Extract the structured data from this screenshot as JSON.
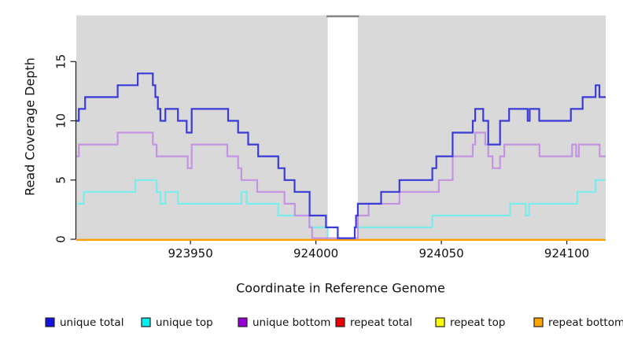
{
  "chart_data": {
    "type": "line",
    "step": true,
    "title": "",
    "xlabel": "Coordinate in Reference Genome",
    "ylabel": "Read Coverage Depth",
    "xlim": [
      923904.5,
      924115.5
    ],
    "ylim": [
      0,
      18.8
    ],
    "x_ticks": [
      923950,
      924000,
      924050,
      924100
    ],
    "y_ticks": [
      0,
      5,
      10,
      15
    ],
    "grid": "off",
    "legend_position": "bottom",
    "plot_bg": "#d9d9d9",
    "gap_band": {
      "x_start": 924004.7,
      "x_end": 924016.7,
      "fill": "#ffffff",
      "cap_color": "#808080"
    },
    "series": [
      {
        "name": "unique total",
        "line_color": "#3b3bd8",
        "legend_color": "#1111e8",
        "points": [
          [
            923904.5,
            10
          ],
          [
            923905.5,
            11
          ],
          [
            923908,
            12
          ],
          [
            923921,
            13
          ],
          [
            923929,
            14
          ],
          [
            923935,
            13
          ],
          [
            923936,
            12
          ],
          [
            923937,
            11
          ],
          [
            923938,
            10
          ],
          [
            923940,
            11
          ],
          [
            923945,
            10
          ],
          [
            923948.5,
            9
          ],
          [
            923950.5,
            11
          ],
          [
            923965,
            10
          ],
          [
            923969,
            9
          ],
          [
            923973,
            8
          ],
          [
            923977,
            7
          ],
          [
            923985,
            6
          ],
          [
            923987.5,
            5
          ],
          [
            923991.5,
            4
          ],
          [
            923997.5,
            2
          ],
          [
            924004,
            1
          ],
          [
            924008.7,
            0
          ],
          [
            924015.5,
            1
          ],
          [
            924016,
            2
          ],
          [
            924016.7,
            3
          ],
          [
            924026,
            4
          ],
          [
            924033.3,
            5
          ],
          [
            924046.4,
            6
          ],
          [
            924048,
            7
          ],
          [
            924054.5,
            9
          ],
          [
            924062.5,
            10
          ],
          [
            924063.5,
            11
          ],
          [
            924066.7,
            10
          ],
          [
            924068.7,
            8
          ],
          [
            924073.4,
            10
          ],
          [
            924077,
            11
          ],
          [
            924084.4,
            10
          ],
          [
            924085.2,
            11
          ],
          [
            924089,
            10
          ],
          [
            924101.6,
            11
          ],
          [
            924106.3,
            12
          ],
          [
            924111.5,
            13
          ],
          [
            924113,
            12
          ]
        ]
      },
      {
        "name": "unique top",
        "line_color": "#7bebeb",
        "legend_color": "#00f0f0",
        "points": [
          [
            923904.5,
            3
          ],
          [
            923907.5,
            4
          ],
          [
            923928,
            5
          ],
          [
            923936.5,
            4
          ],
          [
            923938,
            3
          ],
          [
            923940,
            4
          ],
          [
            923945,
            3
          ],
          [
            923970.3,
            4
          ],
          [
            923972.4,
            3
          ],
          [
            923985,
            2
          ],
          [
            923997.5,
            1
          ],
          [
            924004.7,
            0
          ],
          [
            924016.7,
            1
          ],
          [
            924046.4,
            2
          ],
          [
            924077.4,
            3
          ],
          [
            924083.6,
            2
          ],
          [
            924085,
            3
          ],
          [
            924104.2,
            4
          ],
          [
            924111.5,
            5
          ]
        ]
      },
      {
        "name": "unique bottom",
        "line_color": "#c493e1",
        "legend_color": "#9400d3",
        "points": [
          [
            923904.5,
            7
          ],
          [
            923905.5,
            8
          ],
          [
            923921,
            9
          ],
          [
            923935,
            8
          ],
          [
            923936.5,
            7
          ],
          [
            923948.9,
            6
          ],
          [
            923950.5,
            8
          ],
          [
            923964.7,
            7
          ],
          [
            923969,
            6
          ],
          [
            923970.3,
            5
          ],
          [
            923976.6,
            4
          ],
          [
            923987.5,
            3
          ],
          [
            923991.6,
            2
          ],
          [
            923997.4,
            1
          ],
          [
            923998.5,
            0
          ],
          [
            924016.7,
            2
          ],
          [
            924021,
            3
          ],
          [
            924033.3,
            4
          ],
          [
            924049,
            5
          ],
          [
            924054.5,
            7
          ],
          [
            924062.5,
            8
          ],
          [
            924063.5,
            9
          ],
          [
            924067.5,
            8
          ],
          [
            924068.7,
            7
          ],
          [
            924070.4,
            6
          ],
          [
            924073.4,
            7
          ],
          [
            924075.1,
            8
          ],
          [
            924089.1,
            7
          ],
          [
            924102.1,
            8
          ],
          [
            924103.7,
            7
          ],
          [
            924104.8,
            8
          ],
          [
            924113.1,
            7
          ]
        ]
      },
      {
        "name": "repeat total",
        "line_color": "#e00000",
        "legend_color": "#e80000",
        "points": [
          [
            923904.5,
            0
          ]
        ]
      },
      {
        "name": "repeat top",
        "line_color": "#ffff00",
        "legend_color": "#ffff00",
        "points": [
          [
            923904.5,
            0
          ]
        ]
      },
      {
        "name": "repeat bottom",
        "line_color": "#ff9d00",
        "legend_color": "#ffa500",
        "points": [
          [
            923904.5,
            0
          ]
        ]
      }
    ]
  },
  "axis_style": {
    "tick_color": "#1a1a1a",
    "label_color": "#111111"
  }
}
